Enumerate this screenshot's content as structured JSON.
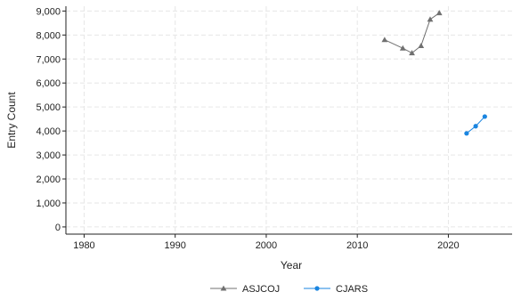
{
  "chart_data": {
    "type": "line",
    "xlabel": "Year",
    "ylabel": "Entry Count",
    "xlim": [
      1978,
      2027
    ],
    "ylim": [
      -300,
      9200
    ],
    "xticks": [
      1980,
      1990,
      2000,
      2010,
      2020
    ],
    "yticks": [
      0,
      1000,
      2000,
      3000,
      4000,
      5000,
      6000,
      7000,
      8000,
      9000
    ],
    "ytick_labels": [
      "0",
      "1,000",
      "2,000",
      "3,000",
      "4,000",
      "5,000",
      "6,000",
      "7,000",
      "8,000",
      "9,000"
    ],
    "grid": true,
    "legend_position": "bottom",
    "series": [
      {
        "name": "ASJCOJ",
        "color": "#707070",
        "marker": "triangle",
        "x": [
          2013,
          2015,
          2016,
          2017,
          2018,
          2019
        ],
        "y": [
          7800,
          7450,
          7250,
          7550,
          8650,
          8920
        ]
      },
      {
        "name": "CJARS",
        "color": "#1a85e0",
        "marker": "circle",
        "x": [
          2022,
          2023,
          2024
        ],
        "y": [
          3900,
          4200,
          4600
        ]
      }
    ]
  }
}
